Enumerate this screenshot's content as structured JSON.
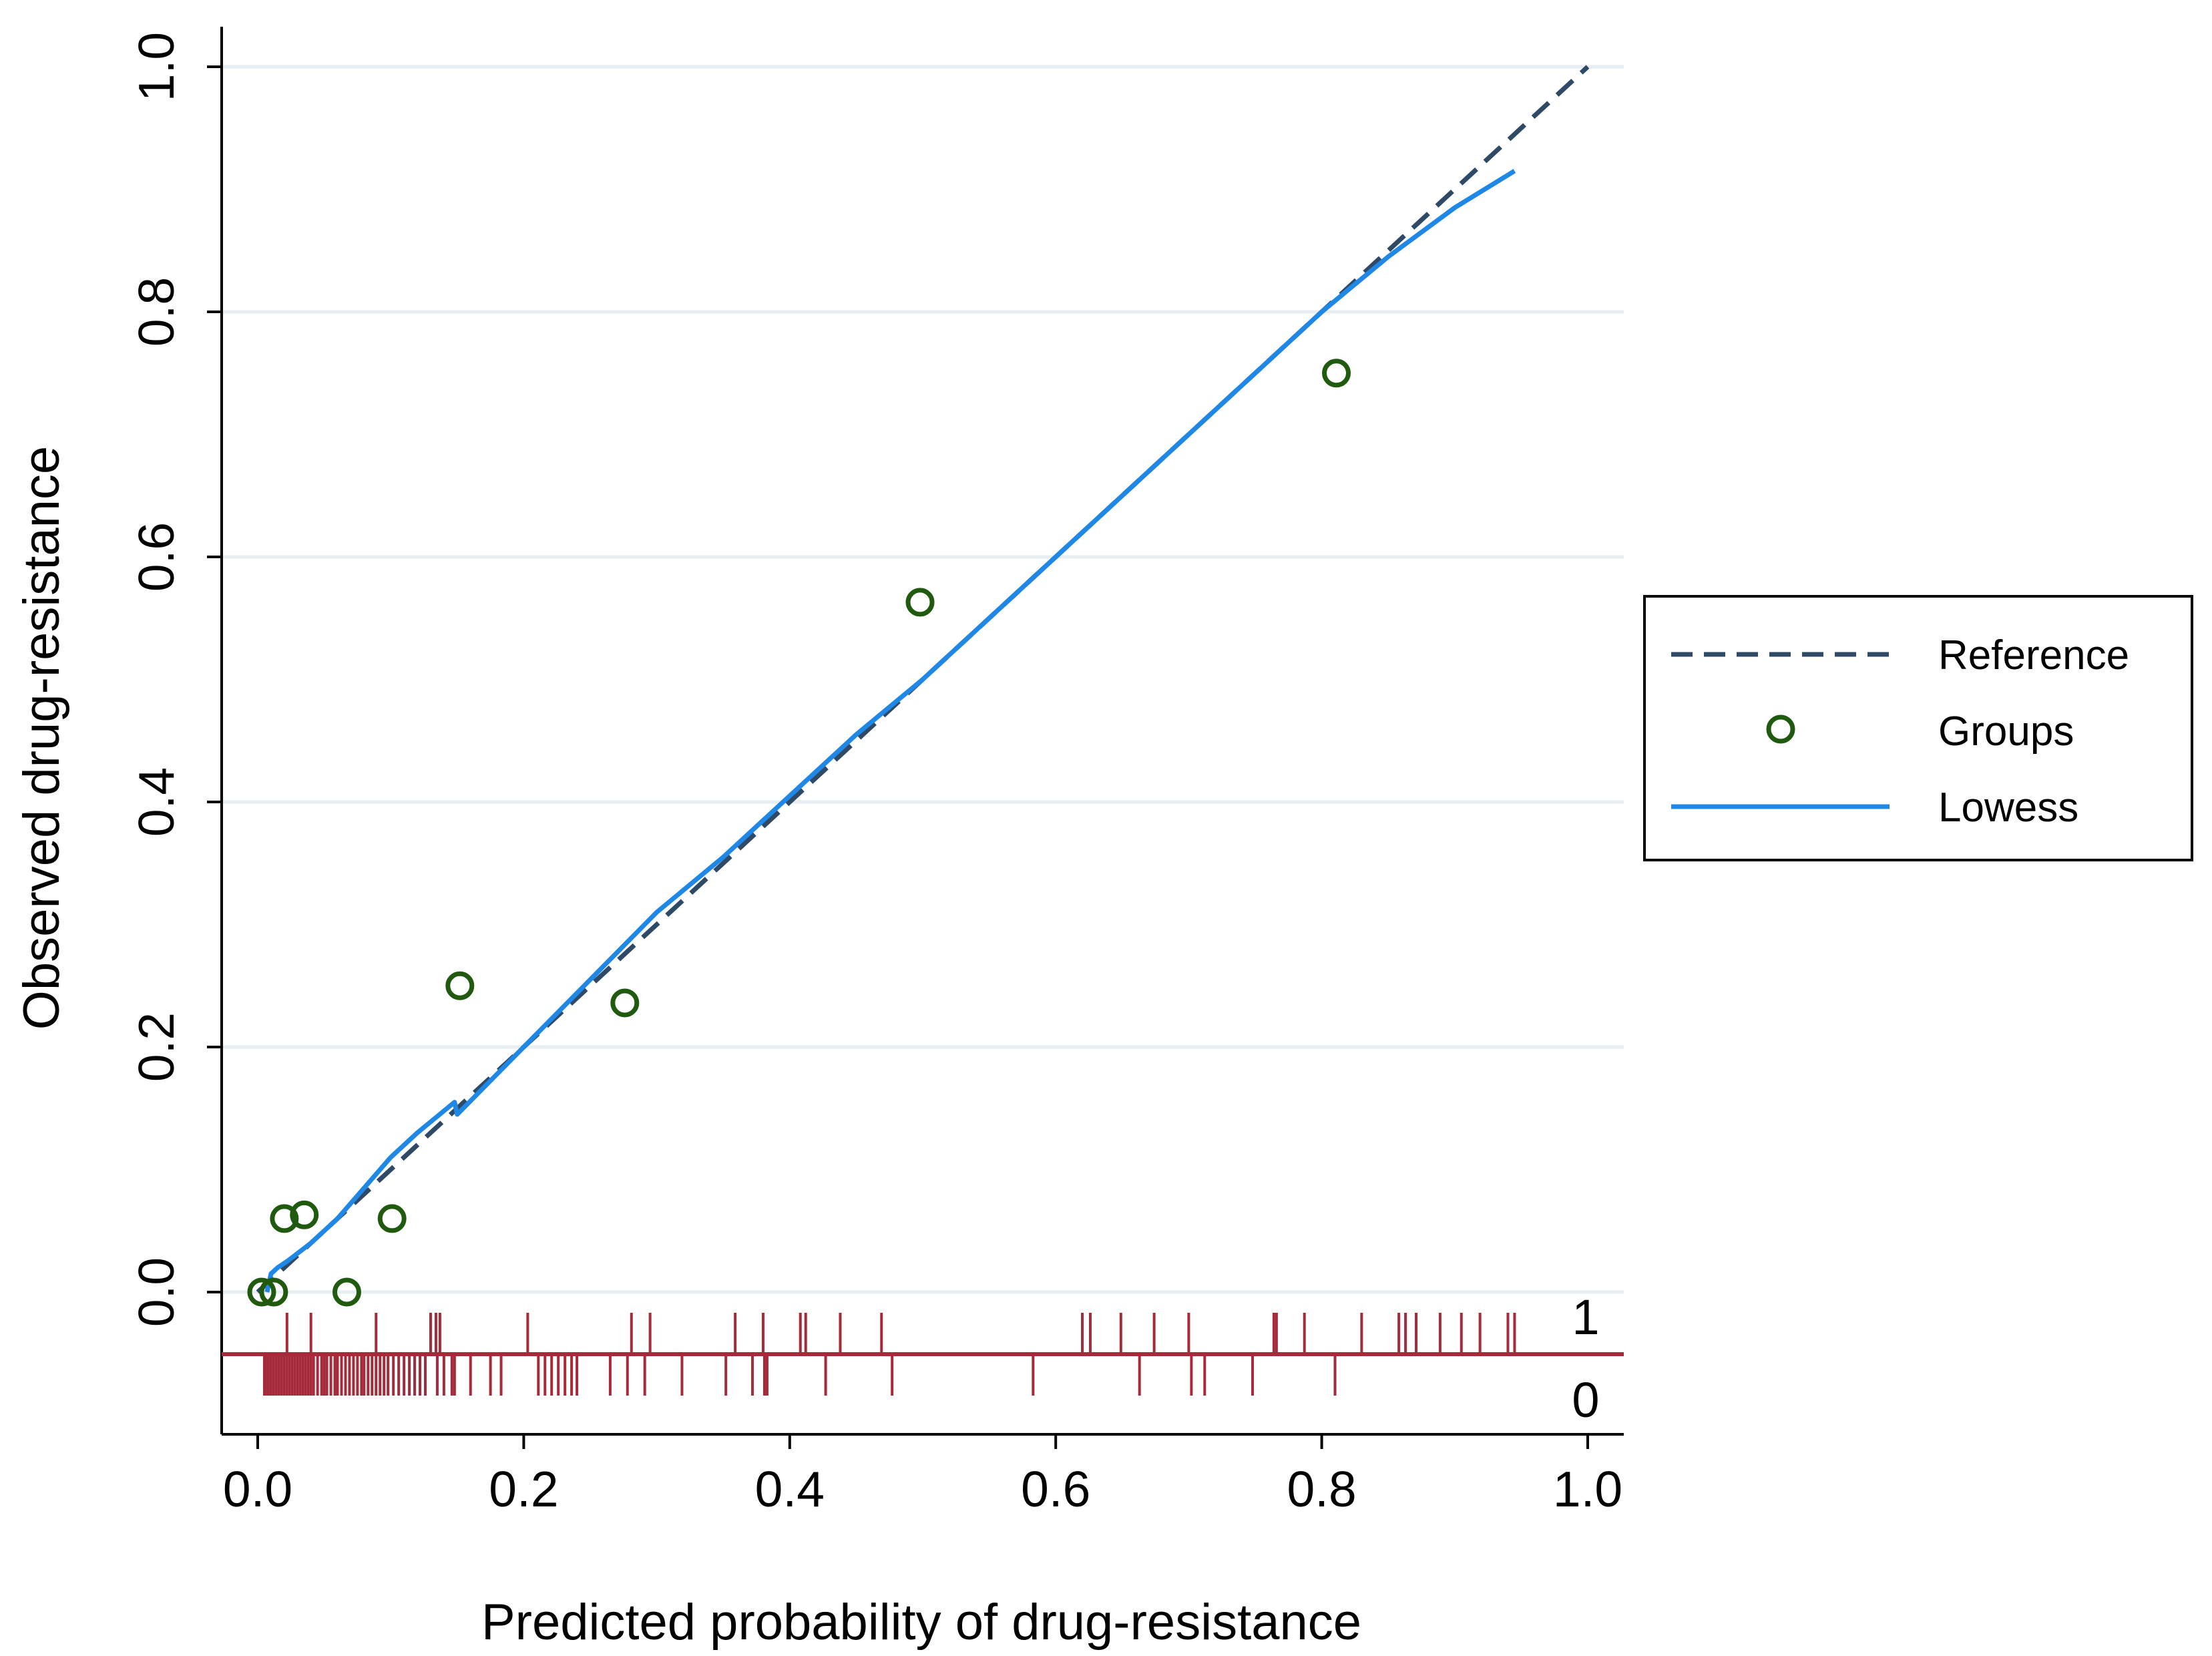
{
  "chart_data": {
    "type": "scatter",
    "title": "",
    "xlabel": "Predicted probability of drug-resistance",
    "ylabel": "Observed drug-resistance",
    "xlim": [
      0,
      1
    ],
    "ylim": [
      0,
      1
    ],
    "x_ticks": [
      "0.0",
      "0.2",
      "0.4",
      "0.6",
      "0.8",
      "1.0"
    ],
    "y_ticks": [
      "0.0",
      "0.2",
      "0.4",
      "0.6",
      "0.8",
      "1.0"
    ],
    "grid": "horizontal",
    "legend_position": "right",
    "colors": {
      "reference": "#2f4a66",
      "groups": "#1f5a0e",
      "lowess": "#1f87e6",
      "rug": "#a52a3a",
      "grid": "#e6eef2"
    },
    "series": [
      {
        "name": "Reference",
        "kind": "dashed-line",
        "x": [
          0.0,
          1.0
        ],
        "y": [
          0.0,
          1.0
        ]
      },
      {
        "name": "Groups",
        "kind": "hollow-circles",
        "x": [
          0.003,
          0.012,
          0.02,
          0.035,
          0.067,
          0.101,
          0.152,
          0.276,
          0.498,
          0.811
        ],
        "y": [
          0.0,
          0.0,
          0.06,
          0.063,
          0.0,
          0.06,
          0.25,
          0.236,
          0.563,
          0.75
        ]
      },
      {
        "name": "Lowess",
        "kind": "line",
        "x": [
          0.007,
          0.01,
          0.015,
          0.022,
          0.04,
          0.06,
          0.08,
          0.1,
          0.12,
          0.148,
          0.15,
          0.2,
          0.25,
          0.3,
          0.35,
          0.4,
          0.45,
          0.5,
          0.55,
          0.6,
          0.65,
          0.7,
          0.75,
          0.8,
          0.85,
          0.9,
          0.945
        ],
        "y": [
          0.0,
          0.015,
          0.02,
          0.025,
          0.04,
          0.06,
          0.085,
          0.11,
          0.13,
          0.155,
          0.145,
          0.2,
          0.255,
          0.31,
          0.355,
          0.405,
          0.455,
          0.5,
          0.55,
          0.6,
          0.65,
          0.7,
          0.75,
          0.8,
          0.845,
          0.885,
          0.915
        ]
      }
    ],
    "rug": {
      "labels": [
        "1",
        "0"
      ],
      "outcome_1": [
        0.022,
        0.04,
        0.089,
        0.13,
        0.134,
        0.137,
        0.203,
        0.281,
        0.295,
        0.359,
        0.38,
        0.408,
        0.412,
        0.438,
        0.469,
        0.62,
        0.626,
        0.649,
        0.674,
        0.7,
        0.764,
        0.766,
        0.787,
        0.83,
        0.858,
        0.863,
        0.871,
        0.889,
        0.905,
        0.919,
        0.94,
        0.945
      ],
      "outcome_0": [
        0.005,
        0.006,
        0.008,
        0.01,
        0.012,
        0.014,
        0.016,
        0.018,
        0.02,
        0.022,
        0.024,
        0.026,
        0.028,
        0.03,
        0.032,
        0.034,
        0.036,
        0.038,
        0.04,
        0.042,
        0.045,
        0.048,
        0.05,
        0.052,
        0.055,
        0.058,
        0.06,
        0.063,
        0.066,
        0.069,
        0.072,
        0.075,
        0.078,
        0.08,
        0.083,
        0.086,
        0.089,
        0.092,
        0.095,
        0.098,
        0.102,
        0.106,
        0.11,
        0.114,
        0.118,
        0.122,
        0.126,
        0.135,
        0.14,
        0.146,
        0.148,
        0.16,
        0.175,
        0.183,
        0.211,
        0.216,
        0.221,
        0.226,
        0.231,
        0.236,
        0.24,
        0.265,
        0.278,
        0.291,
        0.319,
        0.352,
        0.372,
        0.381,
        0.383,
        0.427,
        0.477,
        0.583,
        0.663,
        0.702,
        0.712,
        0.748,
        0.81
      ]
    }
  }
}
